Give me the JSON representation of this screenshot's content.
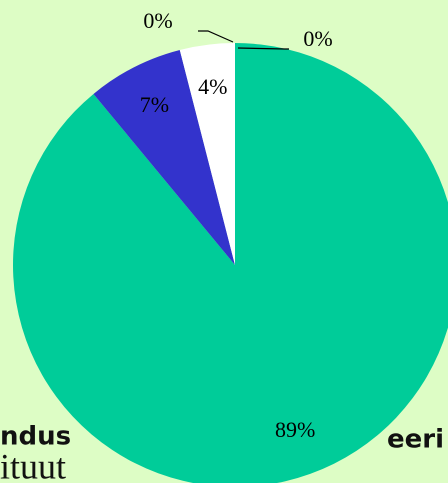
{
  "background": {
    "texts": [
      "ndus",
      "eeri",
      "ituut"
    ]
  },
  "chart_data": {
    "type": "pie",
    "categories": [
      null,
      null,
      null,
      null,
      null
    ],
    "values": [
      89,
      7,
      4,
      0,
      0
    ],
    "value_labels": [
      "89%",
      "7%",
      "4%",
      "0%",
      "0%"
    ],
    "colors": [
      "#00cc99",
      "#3333cc",
      "#ffffff",
      "#ffffff",
      "#ffffff"
    ]
  }
}
